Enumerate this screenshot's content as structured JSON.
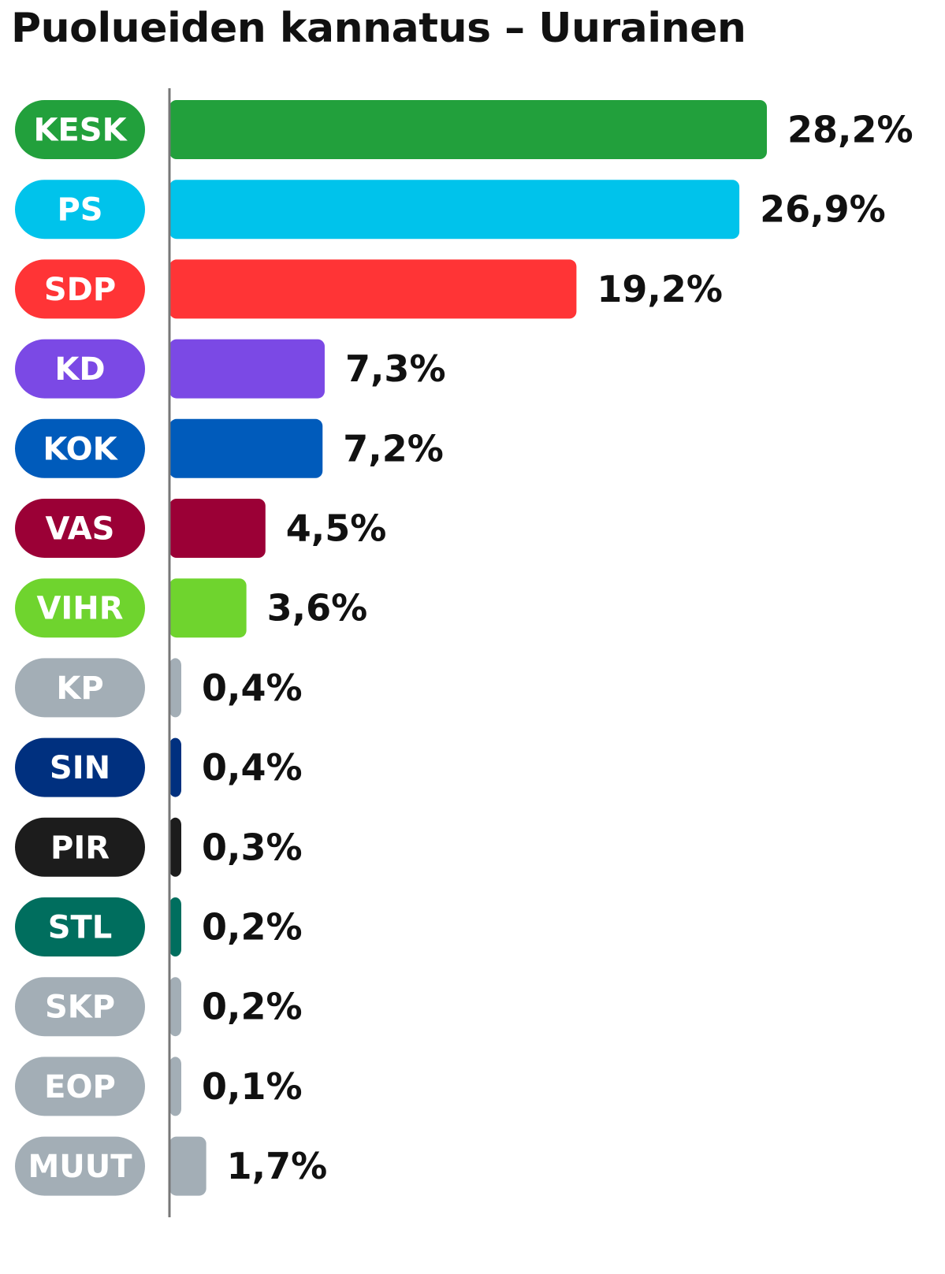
{
  "title": "Puolueiden kannatus – Uurainen",
  "chart_data": {
    "type": "bar",
    "orientation": "horizontal",
    "title": "Puolueiden kannatus – Uurainen",
    "categories": [
      "KESK",
      "PS",
      "SDP",
      "KD",
      "KOK",
      "VAS",
      "VIHR",
      "KP",
      "SIN",
      "PIR",
      "STL",
      "SKP",
      "EOP",
      "MUUT"
    ],
    "values": [
      28.2,
      26.9,
      19.2,
      7.3,
      7.2,
      4.5,
      3.6,
      0.4,
      0.4,
      0.3,
      0.2,
      0.2,
      0.1,
      1.7
    ],
    "value_labels": [
      "28,2%",
      "26,9%",
      "19,2%",
      "7,3%",
      "7,2%",
      "4,5%",
      "3,6%",
      "0,4%",
      "0,4%",
      "0,3%",
      "0,2%",
      "0,2%",
      "0,1%",
      "1,7%"
    ],
    "colors": [
      "#22A03C",
      "#00C3EB",
      "#FF3436",
      "#7B49E5",
      "#005BBB",
      "#9B0036",
      "#6FD42E",
      "#A3AEB6",
      "#00307F",
      "#1C1C1C",
      "#006E5E",
      "#A3AEB6",
      "#A3AEB6",
      "#A3AEB6"
    ],
    "unit": "%",
    "xlim": [
      0,
      28.2
    ],
    "grid": false,
    "legend": "none"
  }
}
